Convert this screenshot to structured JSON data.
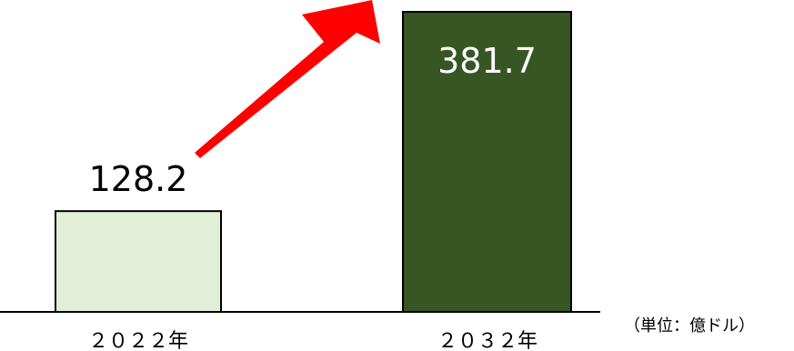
{
  "chart_data": {
    "type": "bar",
    "categories": [
      "２０２２年",
      "２０３２年"
    ],
    "values": [
      128.2,
      381.7
    ],
    "value_labels": [
      "128.2",
      "381.7"
    ],
    "unit_label": "（単位：億ドル）",
    "ylim": [
      0,
      381.7
    ],
    "grid": false,
    "legend": "none",
    "colors": {
      "bar_fills": [
        "#e3eed8",
        "#375623"
      ],
      "bar_stroke": "#000000",
      "value_label_colors": [
        "#000000",
        "#ffffff"
      ],
      "arrow": "#ff0000",
      "baseline": "#000000"
    }
  }
}
